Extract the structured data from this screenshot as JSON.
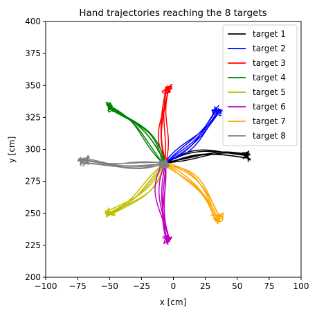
{
  "chart_data": {
    "type": "line",
    "title": "Hand trajectories reaching the 8 targets",
    "xlabel": "x [cm]",
    "ylabel": "y [cm]",
    "xlim": [
      -100,
      100
    ],
    "ylim": [
      200,
      400
    ],
    "xticks": [
      "−100",
      "−75",
      "−50",
      "−25",
      "0",
      "25",
      "50",
      "75",
      "100"
    ],
    "xtick_values": [
      -100,
      -75,
      -50,
      -25,
      0,
      25,
      50,
      75,
      100
    ],
    "yticks": [
      "200",
      "225",
      "250",
      "275",
      "300",
      "325",
      "350",
      "375",
      "400"
    ],
    "ytick_values": [
      200,
      225,
      250,
      275,
      300,
      325,
      350,
      375,
      400
    ],
    "grid": false,
    "legend_position": "top-right",
    "center": [
      -7,
      289
    ],
    "series": [
      {
        "name": "target 1",
        "color": "#000000",
        "end": [
          58,
          295
        ],
        "bend": 5
      },
      {
        "name": "target 2",
        "color": "#0000ff",
        "end": [
          34,
          330
        ],
        "bend": -4
      },
      {
        "name": "target 3",
        "color": "#ff0000",
        "end": [
          -5,
          348
        ],
        "bend": 3
      },
      {
        "name": "target 4",
        "color": "#008000",
        "end": [
          -50,
          332
        ],
        "bend": -6
      },
      {
        "name": "target 5",
        "color": "#bfbf00",
        "end": [
          -50,
          250
        ],
        "bend": 5
      },
      {
        "name": "target 6",
        "color": "#bf00bf",
        "end": [
          -5,
          231
        ],
        "bend": -4
      },
      {
        "name": "target 7",
        "color": "#ffa500",
        "end": [
          34,
          246
        ],
        "bend": 7
      },
      {
        "name": "target 8",
        "color": "#808080",
        "end": [
          -70,
          291
        ],
        "bend": 3
      }
    ]
  }
}
